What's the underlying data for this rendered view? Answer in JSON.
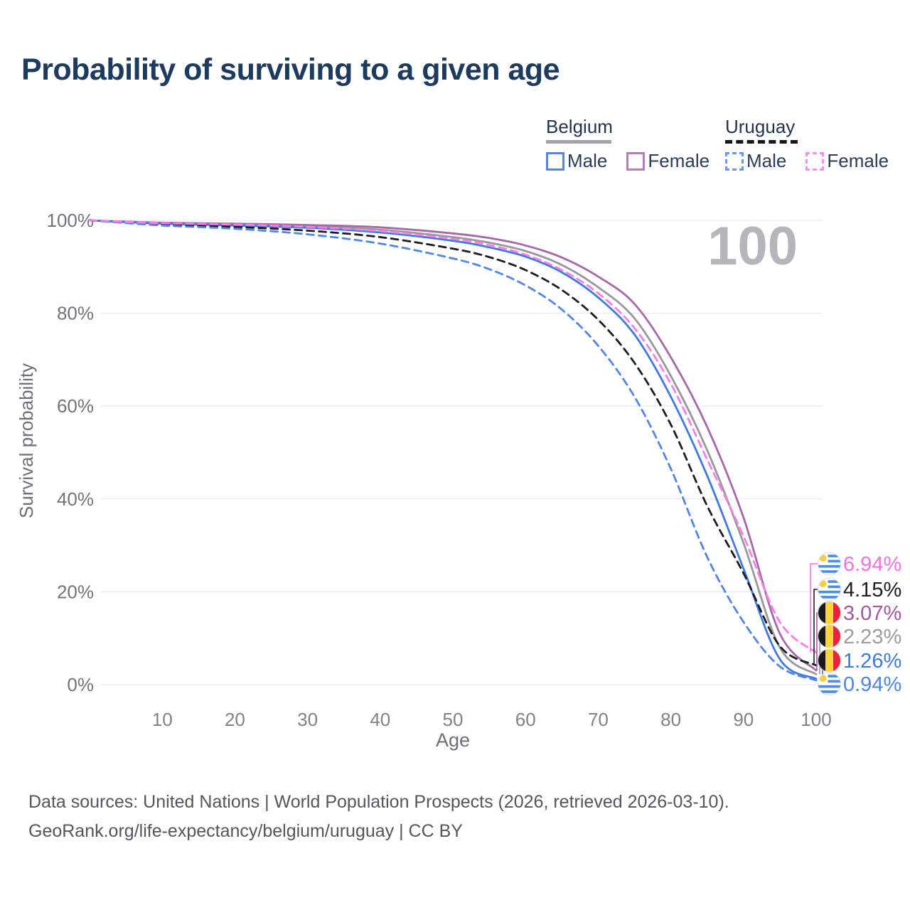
{
  "title": "Probability of surviving to a given age",
  "age_marker": "100",
  "legend": {
    "groups": [
      {
        "country": "Belgium",
        "underline_style": "solid",
        "underline_color": "#a2a2a8",
        "items": [
          {
            "label": "Male",
            "color": "#3d7be0",
            "dashed": false
          },
          {
            "label": "Female",
            "color": "#a569a8",
            "dashed": false
          }
        ]
      },
      {
        "country": "Uruguay",
        "underline_style": "dashed",
        "underline_color": "#161616",
        "items": [
          {
            "label": "Male",
            "color": "#4f86e8",
            "dashed": true
          },
          {
            "label": "Female",
            "color": "#fc7ce8",
            "dashed": true
          }
        ]
      }
    ]
  },
  "chart_data": {
    "type": "line",
    "title": "Probability of surviving to a given age",
    "xlabel": "Age",
    "ylabel": "Survival probability",
    "xlim": [
      0,
      100
    ],
    "ylim": [
      0,
      100
    ],
    "grid": true,
    "x_ticks": [
      10,
      20,
      30,
      40,
      50,
      60,
      70,
      80,
      90,
      100
    ],
    "y_ticks": [
      {
        "value": 100,
        "label": "100%"
      },
      {
        "value": 80,
        "label": "80%"
      },
      {
        "value": 60,
        "label": "60%"
      },
      {
        "value": 40,
        "label": "40%"
      },
      {
        "value": 20,
        "label": "20%"
      },
      {
        "value": 0,
        "label": "0%"
      }
    ],
    "x": [
      0,
      10,
      20,
      30,
      40,
      50,
      55,
      60,
      65,
      70,
      75,
      80,
      85,
      90,
      95,
      100
    ],
    "series": [
      {
        "name": "Belgium",
        "sex": "all",
        "color": "#98989d",
        "dashed": false,
        "values": [
          100,
          99.4,
          99.1,
          98.7,
          98.0,
          96.4,
          95.2,
          93.4,
          90.4,
          85.6,
          78.9,
          66.5,
          50.5,
          30.5,
          8.0,
          2.23
        ]
      },
      {
        "name": "Belgium Female",
        "sex": "female",
        "color": "#a569a8",
        "dashed": false,
        "values": [
          100,
          99.5,
          99.3,
          99.0,
          98.5,
          97.2,
          96.2,
          94.6,
          92.0,
          87.9,
          82.0,
          70.5,
          55.5,
          36.0,
          11.0,
          3.07
        ]
      },
      {
        "name": "Belgium Male",
        "sex": "male",
        "color": "#3d7be0",
        "dashed": false,
        "values": [
          100,
          99.3,
          98.9,
          98.4,
          97.4,
          95.6,
          94.2,
          92.2,
          88.8,
          83.4,
          75.4,
          62.0,
          45.0,
          25.0,
          5.5,
          1.26
        ]
      },
      {
        "name": "Uruguay",
        "sex": "all",
        "color": "#1c1c22",
        "dashed": true,
        "values": [
          100,
          99.1,
          98.6,
          97.8,
          96.4,
          93.9,
          92.1,
          89.3,
          85.0,
          78.6,
          69.3,
          56.0,
          38.5,
          24.0,
          8.3,
          4.15
        ]
      },
      {
        "name": "Uruguay Male",
        "sex": "male",
        "color": "#4f86e8",
        "dashed": true,
        "values": [
          100,
          98.9,
          98.2,
          97.0,
          95.0,
          91.8,
          89.5,
          86.0,
          80.8,
          73.0,
          62.0,
          46.5,
          27.5,
          13.5,
          3.9,
          0.94
        ]
      },
      {
        "name": "Uruguay Female",
        "sex": "female",
        "color": "#fc7ce8",
        "dashed": true,
        "values": [
          100,
          99.4,
          99.1,
          98.6,
          97.7,
          96.0,
          94.7,
          92.6,
          89.3,
          84.3,
          76.8,
          64.8,
          48.5,
          32.0,
          13.5,
          6.94
        ]
      }
    ],
    "end_labels": [
      {
        "series": "Uruguay Female",
        "value": "6.94%",
        "pct": 6.94,
        "flag": "uruguay",
        "color": "#f670e2"
      },
      {
        "series": "Uruguay",
        "value": "4.15%",
        "pct": 4.15,
        "flag": "uruguay",
        "color": "#1d1d26"
      },
      {
        "series": "Belgium Female",
        "value": "3.07%",
        "pct": 3.07,
        "flag": "belgium",
        "color": "#a159a0"
      },
      {
        "series": "Belgium",
        "value": "2.23%",
        "pct": 2.23,
        "flag": "belgium",
        "color": "#9b9ba3"
      },
      {
        "series": "Belgium Male",
        "value": "1.26%",
        "pct": 1.26,
        "flag": "belgium",
        "color": "#3c7bdd"
      },
      {
        "series": "Uruguay Male",
        "value": "0.94%",
        "pct": 0.94,
        "flag": "uruguay",
        "color": "#4c86ea"
      }
    ]
  },
  "footer": {
    "line1": "Data sources: United Nations | World Population Prospects (2026, retrieved 2026-03-10).",
    "line2": "GeoRank.org/life-expectancy/belgium/uruguay | CC BY"
  }
}
